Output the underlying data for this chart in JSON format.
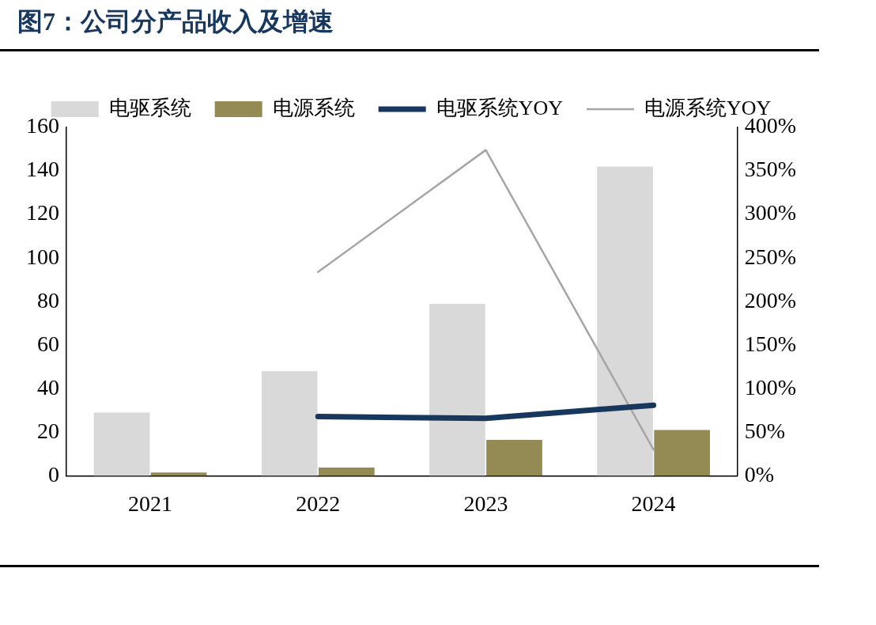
{
  "chart_data": {
    "type": "bar",
    "title": "图7：公司分产品收入及增速",
    "categories": [
      "2021",
      "2022",
      "2023",
      "2024"
    ],
    "series": [
      {
        "name": "电驱系统",
        "color": "#d9d9d9",
        "values": [
          29,
          48,
          79,
          142
        ]
      },
      {
        "name": "电源系统",
        "color": "#948a54",
        "values": [
          1.5,
          3.8,
          16.5,
          21
        ]
      },
      {
        "name": "电驱系统YOY",
        "type": "line",
        "axis": "y2",
        "color": "#17375e",
        "values": [
          null,
          68,
          66,
          81
        ]
      },
      {
        "name": "电源系统YOY",
        "type": "line",
        "axis": "y2",
        "color": "#a6a6a6",
        "values": [
          null,
          234,
          374,
          30
        ]
      }
    ],
    "ylim": [
      0,
      160
    ],
    "yticks": [
      0,
      20,
      40,
      60,
      80,
      100,
      120,
      140,
      160
    ],
    "y2lim": [
      0,
      400
    ],
    "y2ticks": [
      {
        "value": 0,
        "label": "0%"
      },
      {
        "value": 50,
        "label": "50%"
      },
      {
        "value": 100,
        "label": "100%"
      },
      {
        "value": 150,
        "label": "150%"
      },
      {
        "value": 200,
        "label": "200%"
      },
      {
        "value": 250,
        "label": "250%"
      },
      {
        "value": 300,
        "label": "300%"
      },
      {
        "value": 350,
        "label": "350%"
      },
      {
        "value": 400,
        "label": "400%"
      }
    ],
    "grid": false,
    "legend": "top",
    "marker": "none",
    "line_style": "solid"
  }
}
